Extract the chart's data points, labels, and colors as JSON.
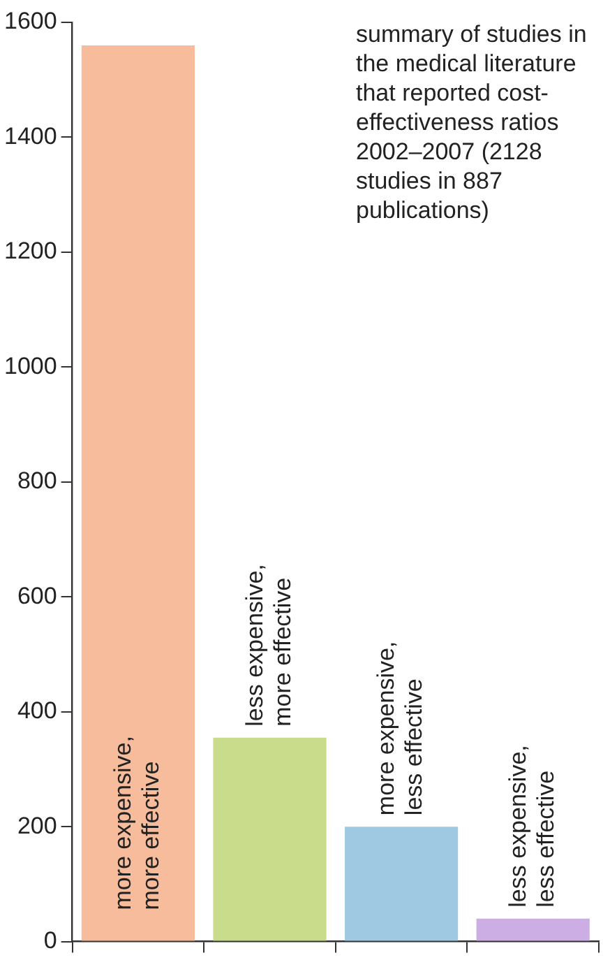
{
  "chart_data": {
    "type": "bar",
    "categories": [
      "more expensive,\nmore effective",
      "less expensive,\nmore effective",
      "more expensive,\nless effective",
      "less expensive,\nless effective"
    ],
    "values": [
      1560,
      355,
      200,
      40
    ],
    "colors": [
      "#f6bc9c",
      "#c9dc8c",
      "#9fc9e2",
      "#cdaee4"
    ],
    "ylim": [
      0,
      1600
    ],
    "yticks": [
      0,
      200,
      400,
      600,
      800,
      1000,
      1200,
      1400,
      1600
    ],
    "tick_labels": "y",
    "annotations": [
      "summary of studies in the medical literature that reported cost-effectiveness ratios 2002–2007 (2128 studies in 887 publications)"
    ]
  }
}
